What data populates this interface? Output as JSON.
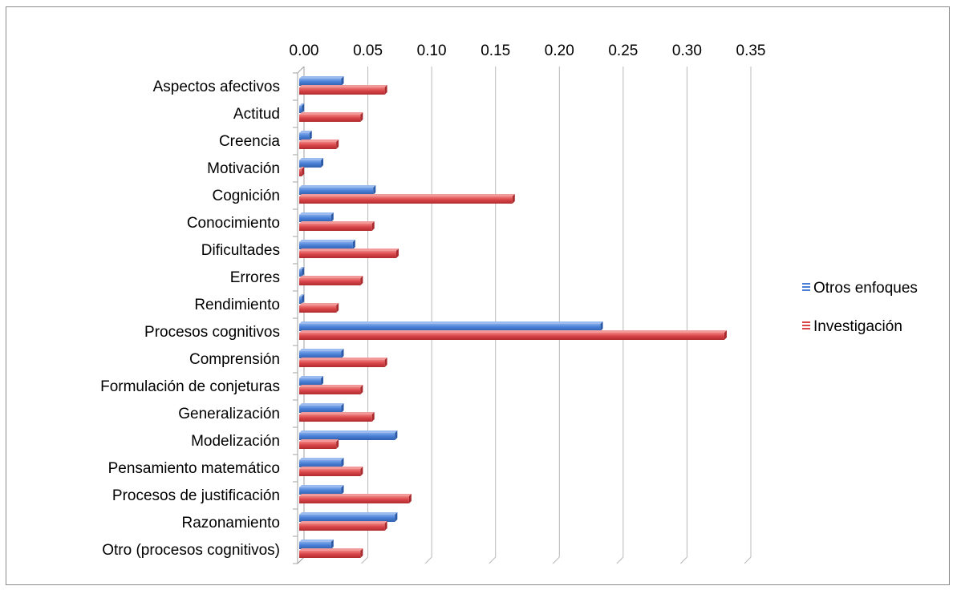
{
  "chart_data": {
    "type": "bar",
    "orientation": "horizontal",
    "style": "3d-clustered",
    "categories": [
      "Aspectos afectivos",
      "Actitud",
      "Creencia",
      "Motivación",
      "Cognición",
      "Conocimiento",
      "Dificultades",
      "Errores",
      "Rendimiento",
      "Procesos cognitivos",
      "Comprensión",
      "Formulación de conjeturas",
      "Generalización",
      "Modelización",
      "Pensamiento matemático",
      "Procesos de justificación",
      "Razonamiento",
      "Otro (procesos cognitivos)"
    ],
    "series": [
      {
        "name": "Otros enfoques",
        "color": "#4a7fd4",
        "values": [
          0.033,
          0.002,
          0.008,
          0.017,
          0.058,
          0.025,
          0.042,
          0.002,
          0.002,
          0.236,
          0.033,
          0.017,
          0.033,
          0.075,
          0.033,
          0.033,
          0.075,
          0.025
        ]
      },
      {
        "name": "Investigación",
        "color": "#d9464a",
        "values": [
          0.067,
          0.048,
          0.029,
          0.002,
          0.167,
          0.057,
          0.076,
          0.048,
          0.029,
          0.333,
          0.067,
          0.048,
          0.057,
          0.029,
          0.048,
          0.086,
          0.067,
          0.048
        ]
      }
    ],
    "xaxis_position": "top",
    "xlim": [
      0,
      0.35
    ],
    "xticks": [
      "0.00",
      "0.05",
      "0.10",
      "0.15",
      "0.20",
      "0.25",
      "0.30",
      "0.35"
    ],
    "grid": true,
    "legend_position": "right",
    "title": "",
    "xlabel": "",
    "ylabel": ""
  }
}
